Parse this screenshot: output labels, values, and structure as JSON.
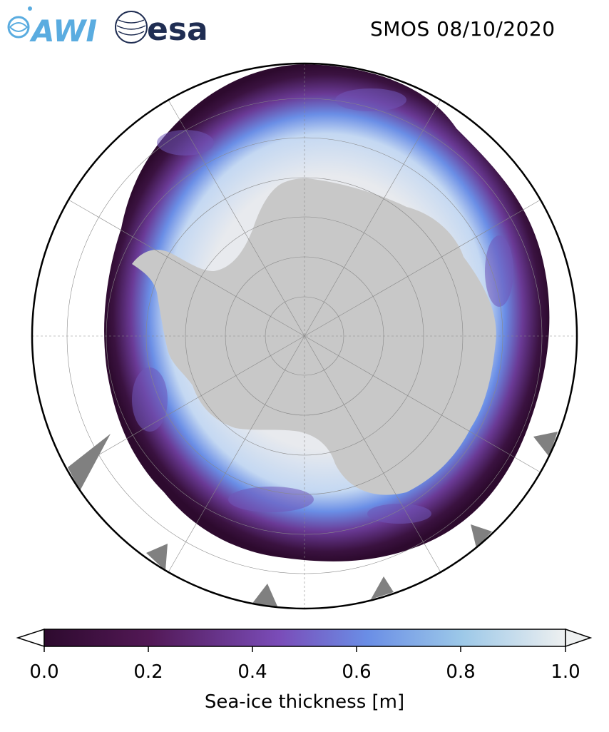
{
  "header": {
    "title": "SMOS 08/10/2020",
    "logos": [
      {
        "name": "awi-logo",
        "text": "AWI",
        "color": "#5aace0"
      },
      {
        "name": "esa-logo",
        "text": "esa",
        "color": "#1f2d52"
      }
    ]
  },
  "map": {
    "projection": "south-polar-stereographic",
    "land_color": "#c8c8c8",
    "ocean_color": "#ffffff",
    "thick_ice_color": "#e8eaee"
  },
  "colorbar": {
    "label": "Sea-ice thickness [m]",
    "ticks": [
      "0.0",
      "0.2",
      "0.4",
      "0.6",
      "0.8",
      "1.0"
    ],
    "min": 0.0,
    "max": 1.0,
    "colors": [
      "#2d0a2e",
      "#521855",
      "#7a3c9c",
      "#6a8ee6",
      "#9cc8e8",
      "#eef0f0"
    ]
  }
}
